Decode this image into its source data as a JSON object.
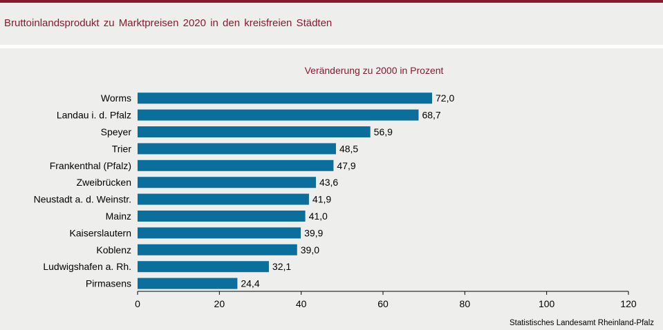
{
  "header": {
    "title": "Bruttoinlandsprodukt  zu Marktpreisen  2020  in den kreisfreien  Städten"
  },
  "colors": {
    "brand": "#8b1a2e",
    "bar": "#0a6f9c",
    "panel": "#eeeeec"
  },
  "chart_data": {
    "type": "bar",
    "orientation": "horizontal",
    "subtitle": "Veränderung zu 2000 in Prozent",
    "categories": [
      "Worms",
      "Landau i. d. Pfalz",
      "Speyer",
      "Trier",
      "Frankenthal (Pfalz)",
      "Zweibrücken",
      "Neustadt a. d. Weinstr.",
      "Mainz",
      "Kaiserslautern",
      "Koblenz",
      "Ludwigshafen a. Rh.",
      "Pirmasens"
    ],
    "values": [
      72.0,
      68.7,
      56.9,
      48.5,
      47.9,
      43.6,
      41.9,
      41.0,
      39.9,
      39.0,
      32.1,
      24.4
    ],
    "value_labels": [
      "72,0",
      "68,7",
      "56,9",
      "48,5",
      "47,9",
      "43,6",
      "41,9",
      "41,0",
      "39,9",
      "39,0",
      "32,1",
      "24,4"
    ],
    "xlim": [
      0,
      120
    ],
    "xticks": [
      0,
      20,
      40,
      60,
      80,
      100,
      120
    ],
    "xtick_labels": [
      "0",
      "20",
      "40",
      "60",
      "80",
      "100",
      "120"
    ],
    "grid": false,
    "legend": "none"
  },
  "footer": {
    "source": "Statistisches Landesamt  Rheinland-Pfalz"
  }
}
